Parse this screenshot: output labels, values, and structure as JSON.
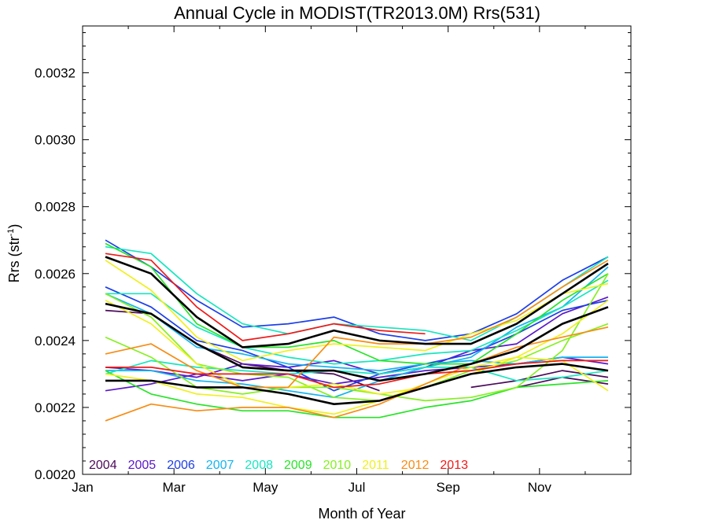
{
  "chart_data": {
    "type": "line",
    "title": "Annual Cycle in MODIST(TR2013.0M) Rrs(531)",
    "xlabel": "Month of Year",
    "ylabel": "Rrs (str",
    "ylabel_sup": "-1",
    "ylabel_close": ")",
    "xlim": [
      0,
      12
    ],
    "ylim": [
      0.002,
      0.00334
    ],
    "x_ticks": [
      {
        "label": "Jan",
        "value": 0
      },
      {
        "label": "Mar",
        "value": 2
      },
      {
        "label": "May",
        "value": 4
      },
      {
        "label": "Jul",
        "value": 6
      },
      {
        "label": "Sep",
        "value": 8
      },
      {
        "label": "Nov",
        "value": 10
      }
    ],
    "y_ticks": [
      {
        "label": "0.0020",
        "value": 0.002
      },
      {
        "label": "0.0022",
        "value": 0.0022
      },
      {
        "label": "0.0024",
        "value": 0.0024
      },
      {
        "label": "0.0026",
        "value": 0.0026
      },
      {
        "label": "0.0028",
        "value": 0.0028
      },
      {
        "label": "0.0030",
        "value": 0.003
      },
      {
        "label": "0.0032",
        "value": 0.0032
      }
    ],
    "x": [
      0.5,
      1.5,
      2.5,
      3.5,
      4.5,
      5.5,
      6.5,
      7.5,
      8.5,
      9.5,
      10.5,
      11.5
    ],
    "legend_position": "bottom-left",
    "legend": [
      {
        "label": "2004",
        "color": "#4b0a5a"
      },
      {
        "label": "2005",
        "color": "#5a18c8"
      },
      {
        "label": "2006",
        "color": "#1c3ee8"
      },
      {
        "label": "2007",
        "color": "#14b4f0"
      },
      {
        "label": "2008",
        "color": "#18e6c0"
      },
      {
        "label": "2009",
        "color": "#28e428"
      },
      {
        "label": "2010",
        "color": "#86f020"
      },
      {
        "label": "2011",
        "color": "#f0f020"
      },
      {
        "label": "2012",
        "color": "#f78c14"
      },
      {
        "label": "2013",
        "color": "#f01818"
      }
    ],
    "series": [
      {
        "color": "#4b0a5a",
        "values": [
          0.00249,
          0.00248,
          0.00239,
          0.00233,
          0.00231,
          0.0023,
          0.00225,
          null,
          null,
          0.00226,
          0.00229,
          0.00227
        ]
      },
      {
        "color": "#4b0a5a",
        "values": [
          null,
          null,
          null,
          null,
          null,
          null,
          null,
          null,
          0.00226,
          0.00228,
          0.00231,
          0.00229
        ]
      },
      {
        "color": "#5a18c8",
        "values": [
          0.00225,
          0.00227,
          0.0023,
          0.00228,
          0.0023,
          0.00227,
          0.00229,
          0.00231,
          0.00232,
          0.00233,
          0.00235,
          0.00233
        ]
      },
      {
        "color": "#5a18c8",
        "values": [
          0.00232,
          0.00231,
          0.00229,
          0.00233,
          0.00232,
          0.00234,
          0.0023,
          0.00232,
          0.00237,
          0.00239,
          0.00248,
          0.00253
        ]
      },
      {
        "color": "#1c3ee8",
        "values": [
          0.0027,
          0.00262,
          0.00252,
          0.00244,
          0.00245,
          0.00247,
          0.00242,
          0.0024,
          0.00242,
          0.00248,
          0.00258,
          0.00265
        ]
      },
      {
        "color": "#1c3ee8",
        "values": [
          0.00256,
          0.0025,
          0.0024,
          0.00237,
          0.00232,
          0.00225,
          0.0023,
          0.00233,
          0.00236,
          0.00242,
          0.00249,
          0.00252
        ]
      },
      {
        "color": "#14b4f0",
        "values": [
          0.00231,
          0.00231,
          0.00228,
          0.00227,
          0.00225,
          0.00223,
          0.00228,
          0.00232,
          0.00235,
          0.00244,
          0.0025,
          0.00262
        ]
      },
      {
        "color": "#14b4f0",
        "values": [
          0.00254,
          0.00248,
          0.00238,
          0.00236,
          0.00233,
          0.00232,
          0.00231,
          0.00233,
          0.00234,
          0.00233,
          0.00235,
          0.00235
        ]
      },
      {
        "color": "#18e6c0",
        "values": [
          0.00268,
          0.00266,
          0.00254,
          0.00245,
          0.00242,
          0.00245,
          0.00244,
          0.00243,
          0.0024,
          0.00247,
          0.00256,
          0.00265
        ]
      },
      {
        "color": "#18e6c0",
        "values": [
          0.0023,
          0.00234,
          0.00232,
          0.00231,
          0.0023,
          0.00231,
          0.0023,
          0.00232,
          0.00232,
          0.00228,
          0.00229,
          0.00231
        ]
      },
      {
        "color": "#18e6c0",
        "values": [
          0.00254,
          0.00254,
          0.00244,
          0.00238,
          0.00235,
          0.00233,
          0.00234,
          0.00236,
          0.00237,
          0.00243,
          0.0025,
          0.00258
        ]
      },
      {
        "color": "#28e428",
        "values": [
          0.00269,
          0.00262,
          0.00245,
          0.00238,
          0.00238,
          0.0024,
          0.00234,
          0.00233,
          0.00233,
          0.00242,
          0.00252,
          0.0026
        ]
      },
      {
        "color": "#28e428",
        "values": [
          0.00231,
          0.00224,
          0.00221,
          0.00219,
          0.00219,
          0.00217,
          0.00217,
          0.0022,
          0.00222,
          0.00226,
          0.00227,
          0.00228
        ]
      },
      {
        "color": "#86f020",
        "values": [
          0.00254,
          0.00247,
          0.00233,
          0.0023,
          0.00229,
          0.00223,
          0.00222,
          0.00226,
          0.00231,
          0.00234,
          0.0024,
          0.00245
        ]
      },
      {
        "color": "#86f020",
        "values": [
          0.00241,
          0.00235,
          0.00226,
          0.00224,
          0.00226,
          0.00226,
          0.00224,
          0.00222,
          0.00223,
          0.00226,
          0.00237,
          0.0026
        ]
      },
      {
        "color": "#f0f020",
        "values": [
          0.00264,
          0.00255,
          0.00241,
          0.00234,
          0.00237,
          0.00239,
          0.00238,
          0.00237,
          0.00242,
          0.00246,
          0.00254,
          0.00257
        ]
      },
      {
        "color": "#f0f020",
        "values": [
          0.0023,
          0.00228,
          0.00224,
          0.00223,
          0.0022,
          0.00218,
          0.00222,
          0.00227,
          0.00232,
          0.00235,
          0.00234,
          0.00225
        ]
      },
      {
        "color": "#f0f020",
        "values": [
          0.00252,
          0.00245,
          0.00233,
          0.00226,
          0.00226,
          0.00227,
          0.00224,
          0.00226,
          0.0023,
          0.00235,
          0.00242,
          0.00252
        ]
      },
      {
        "color": "#f78c14",
        "values": [
          0.00216,
          0.00221,
          0.00219,
          0.0022,
          0.0022,
          0.00217,
          0.00221,
          0.00227,
          0.00233,
          0.00238,
          0.00241,
          0.00244
        ]
      },
      {
        "color": "#f78c14",
        "values": [
          0.00236,
          0.00239,
          0.00231,
          0.00226,
          0.00226,
          0.00241,
          0.00239,
          0.00239,
          0.00241,
          0.00247,
          0.00256,
          0.00264
        ]
      },
      {
        "color": "#f01818",
        "values": [
          0.00266,
          0.00264,
          0.0025,
          0.0024,
          0.00242,
          0.00245,
          0.00243,
          0.00242,
          null,
          null,
          null,
          null
        ]
      },
      {
        "color": "#f01818",
        "values": [
          0.00232,
          0.00232,
          0.0023,
          0.0023,
          0.0023,
          0.00226,
          0.00227,
          0.0023,
          0.00231,
          0.00233,
          0.00234,
          0.00234
        ]
      },
      {
        "color": "#000000",
        "thick": true,
        "values": [
          0.00265,
          0.0026,
          0.00247,
          0.00238,
          0.00239,
          0.00243,
          0.0024,
          0.00239,
          0.00239,
          0.00245,
          0.00254,
          0.00263
        ]
      },
      {
        "color": "#000000",
        "thick": true,
        "values": [
          0.00251,
          0.00248,
          0.00239,
          0.00232,
          0.00231,
          0.00231,
          0.00228,
          0.0023,
          0.00233,
          0.00237,
          0.00245,
          0.0025
        ]
      },
      {
        "color": "#000000",
        "thick": true,
        "values": [
          0.00228,
          0.00228,
          0.00226,
          0.00226,
          0.00224,
          0.00221,
          0.00222,
          0.00226,
          0.0023,
          0.00232,
          0.00233,
          0.00231
        ]
      }
    ]
  }
}
